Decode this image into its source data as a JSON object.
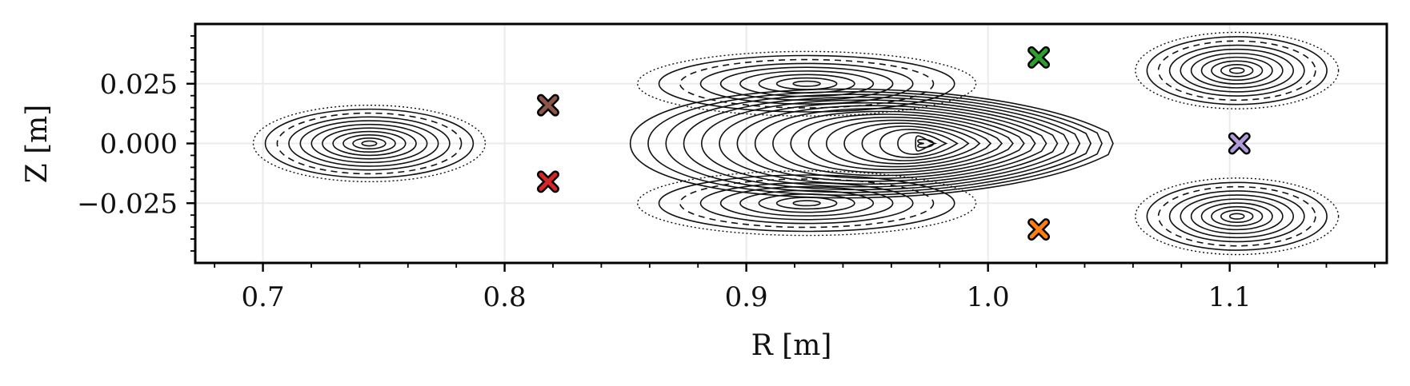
{
  "chart_data": {
    "type": "scatter",
    "title": "",
    "xlabel": "R [m]",
    "ylabel": "Z [m]",
    "xlim": [
      0.672,
      1.165
    ],
    "ylim": [
      -0.05,
      0.05
    ],
    "grid": true,
    "xticks": [
      0.7,
      0.8,
      0.9,
      1.0,
      1.1
    ],
    "xtick_labels": [
      "0.7",
      "0.8",
      "0.9",
      "1.0",
      "1.1"
    ],
    "yticks": [
      0.025,
      0.0,
      -0.025
    ],
    "ytick_labels": [
      "0.025",
      "0.000",
      "−0.025"
    ],
    "islands": [
      {
        "center": [
          0.744,
          0.0
        ],
        "rx": 0.048,
        "ry": 0.016,
        "rings": 11
      },
      {
        "center": [
          0.925,
          0.025
        ],
        "rx": 0.07,
        "ry": 0.0135,
        "rings": 9
      },
      {
        "center": [
          0.925,
          -0.025
        ],
        "rx": 0.07,
        "ry": 0.0135,
        "rings": 9
      },
      {
        "center": [
          1.103,
          0.0305
        ],
        "rx": 0.042,
        "ry": 0.016,
        "rings": 10
      },
      {
        "center": [
          1.103,
          -0.0305
        ],
        "rx": 0.042,
        "ry": 0.016,
        "rings": 10
      }
    ],
    "core": {
      "center": [
        0.955,
        0.0
      ],
      "rx_max": 0.103,
      "ry_max": 0.031,
      "rings": 18
    },
    "x_points": [
      {
        "r": 0.818,
        "z": 0.016,
        "color": "#8c564b",
        "marker": "X"
      },
      {
        "r": 0.818,
        "z": -0.016,
        "color": "#d62728",
        "marker": "X"
      },
      {
        "r": 1.021,
        "z": 0.036,
        "color": "#2ca02c",
        "marker": "X"
      },
      {
        "r": 1.021,
        "z": -0.036,
        "color": "#ff7f0e",
        "marker": "X"
      },
      {
        "r": 1.104,
        "z": 0.0,
        "color": "#b19cd9",
        "marker": "X"
      }
    ]
  }
}
